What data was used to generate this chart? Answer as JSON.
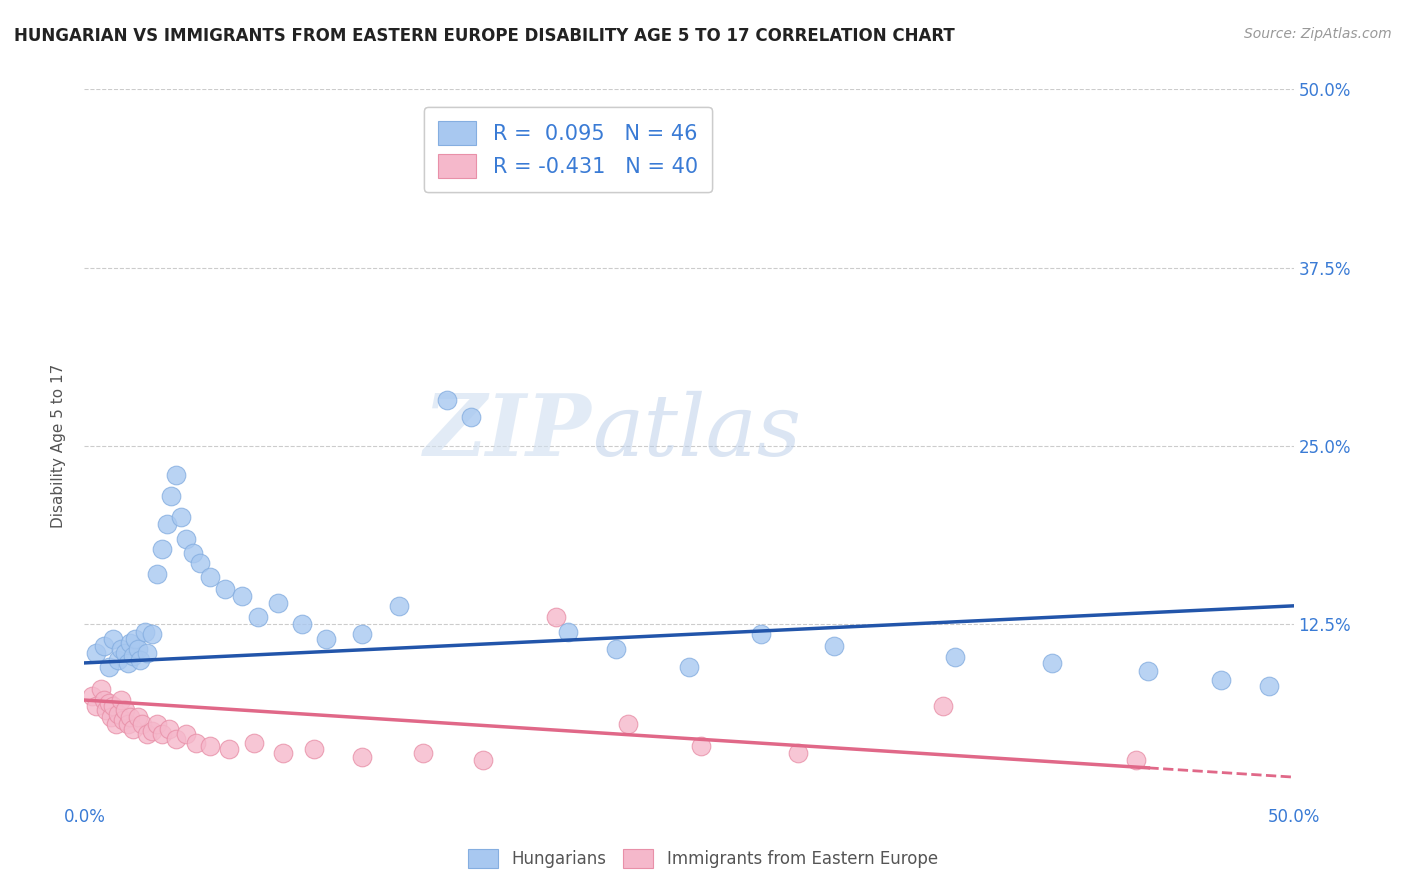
{
  "title": "HUNGARIAN VS IMMIGRANTS FROM EASTERN EUROPE DISABILITY AGE 5 TO 17 CORRELATION CHART",
  "source": "Source: ZipAtlas.com",
  "ylabel": "Disability Age 5 to 17",
  "xlim": [
    0.0,
    0.5
  ],
  "ylim": [
    0.0,
    0.5
  ],
  "R_hungarian": 0.095,
  "N_hungarian": 46,
  "R_immigrant": -0.431,
  "N_immigrant": 40,
  "hungarian_color": "#a8c8f0",
  "hungarian_edge": "#85aee0",
  "immigrant_color": "#f5b8cb",
  "immigrant_edge": "#e890a8",
  "trend_hungarian_color": "#2255aa",
  "trend_immigrant_color": "#e06888",
  "watermark_zip": "ZIP",
  "watermark_atlas": "atlas",
  "background_color": "#ffffff",
  "grid_color": "#cccccc",
  "hungarian_trend_start_y": 0.098,
  "hungarian_trend_end_y": 0.138,
  "immigrant_trend_start_y": 0.072,
  "immigrant_trend_end_y": 0.018,
  "scatter_hungarian_x": [
    0.005,
    0.008,
    0.01,
    0.012,
    0.014,
    0.015,
    0.017,
    0.018,
    0.019,
    0.02,
    0.021,
    0.022,
    0.023,
    0.025,
    0.026,
    0.028,
    0.03,
    0.032,
    0.034,
    0.036,
    0.038,
    0.04,
    0.042,
    0.045,
    0.048,
    0.052,
    0.058,
    0.065,
    0.072,
    0.08,
    0.09,
    0.1,
    0.115,
    0.13,
    0.15,
    0.16,
    0.2,
    0.22,
    0.25,
    0.28,
    0.31,
    0.36,
    0.4,
    0.44,
    0.47,
    0.49
  ],
  "scatter_hungarian_y": [
    0.105,
    0.11,
    0.095,
    0.115,
    0.1,
    0.108,
    0.105,
    0.098,
    0.112,
    0.103,
    0.115,
    0.108,
    0.1,
    0.12,
    0.105,
    0.118,
    0.16,
    0.178,
    0.195,
    0.215,
    0.23,
    0.2,
    0.185,
    0.175,
    0.168,
    0.158,
    0.15,
    0.145,
    0.13,
    0.14,
    0.125,
    0.115,
    0.118,
    0.138,
    0.282,
    0.27,
    0.12,
    0.108,
    0.095,
    0.118,
    0.11,
    0.102,
    0.098,
    0.092,
    0.086,
    0.082
  ],
  "scatter_immigrant_x": [
    0.003,
    0.005,
    0.007,
    0.008,
    0.009,
    0.01,
    0.011,
    0.012,
    0.013,
    0.014,
    0.015,
    0.016,
    0.017,
    0.018,
    0.019,
    0.02,
    0.022,
    0.024,
    0.026,
    0.028,
    0.03,
    0.032,
    0.035,
    0.038,
    0.042,
    0.046,
    0.052,
    0.06,
    0.07,
    0.082,
    0.095,
    0.115,
    0.14,
    0.165,
    0.195,
    0.225,
    0.255,
    0.295,
    0.355,
    0.435
  ],
  "scatter_immigrant_y": [
    0.075,
    0.068,
    0.08,
    0.072,
    0.065,
    0.07,
    0.06,
    0.068,
    0.055,
    0.062,
    0.072,
    0.058,
    0.065,
    0.055,
    0.06,
    0.052,
    0.06,
    0.055,
    0.048,
    0.05,
    0.055,
    0.048,
    0.052,
    0.045,
    0.048,
    0.042,
    0.04,
    0.038,
    0.042,
    0.035,
    0.038,
    0.032,
    0.035,
    0.03,
    0.13,
    0.055,
    0.04,
    0.035,
    0.068,
    0.03
  ]
}
